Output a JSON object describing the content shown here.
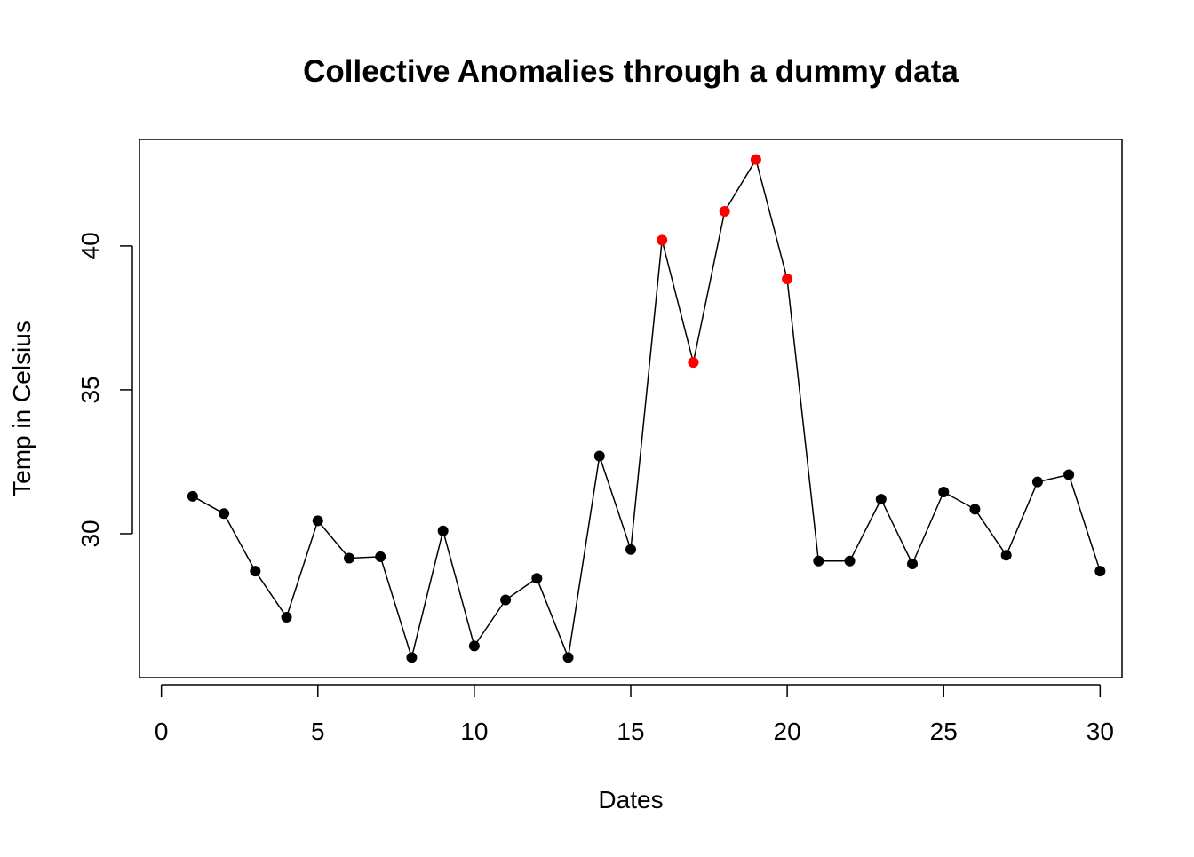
{
  "chart_data": {
    "type": "scatter",
    "title": "Collective Anomalies through a dummy data",
    "xlabel": "Dates",
    "ylabel": "Temp in Celsius",
    "xlim": [
      -0.7,
      30.7
    ],
    "ylim": [
      25,
      43.7
    ],
    "x_ticks": [
      0,
      5,
      10,
      15,
      20,
      25,
      30
    ],
    "y_ticks": [
      30,
      35,
      40
    ],
    "line_color": "#000000",
    "normal_color": "#000000",
    "anomaly_color": "#ff0000",
    "grid": false,
    "legend": "none",
    "anomaly_range": [
      16,
      20
    ],
    "series": [
      {
        "x": [
          1,
          2,
          3,
          4,
          5,
          6,
          7,
          8,
          9,
          10,
          11,
          12,
          13,
          14,
          15,
          16,
          17,
          18,
          19,
          20,
          21,
          22,
          23,
          24,
          25,
          26,
          27,
          28,
          29,
          30
        ],
        "y": [
          31.3,
          30.7,
          28.7,
          27.1,
          30.45,
          29.15,
          29.2,
          25.7,
          30.1,
          26.1,
          27.7,
          28.45,
          25.7,
          32.7,
          29.45,
          40.2,
          35.95,
          41.2,
          43.0,
          38.85,
          29.05,
          29.05,
          31.2,
          28.95,
          31.45,
          30.85,
          29.25,
          31.8,
          32.05,
          28.7
        ]
      }
    ]
  }
}
